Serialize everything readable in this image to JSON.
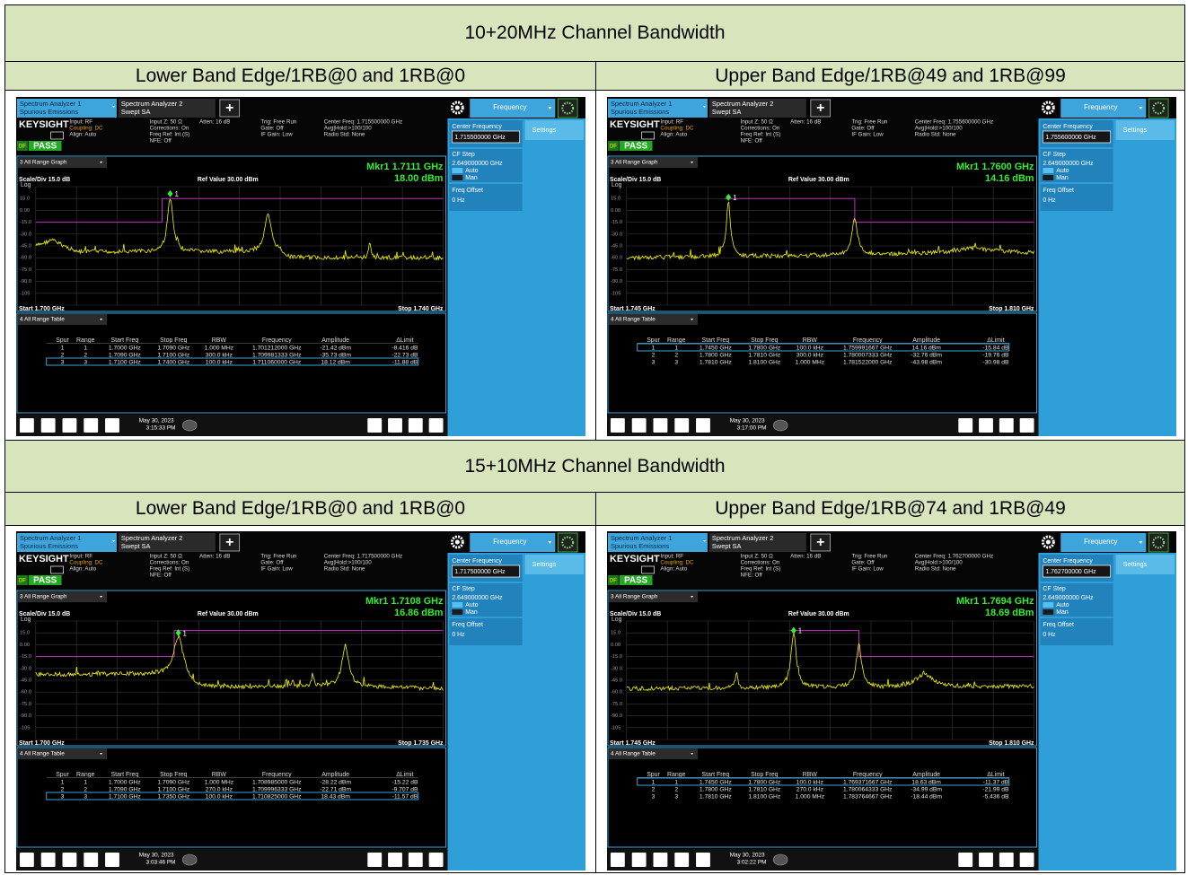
{
  "blocks": [
    {
      "title": "10+20MHz Channel Bandwidth",
      "panels": [
        {
          "heading": "Lower Band Edge/1RB@0 and 1RB@0",
          "screen": {
            "tabs": [
              {
                "line1": "Spectrum Analyzer 1",
                "line2": "Spurious Emissions"
              },
              {
                "line1": "Spectrum Analyzer 2",
                "line2": "Swept SA"
              }
            ],
            "new_tab": "+",
            "menu": "Frequency",
            "brand": "KEYSIGHT",
            "status": [
              [
                "Input: RF",
                "Coupling: DC",
                "Align: Auto"
              ],
              [
                "Input Z: 50 Ω",
                "Corrections: On",
                "Freq Ref: Int (S)",
                "NFE: Off"
              ],
              [
                "Atten: 16 dB"
              ],
              [
                "Trig: Free Run",
                "Gate: Off",
                "IF Gain: Low"
              ],
              [
                "Center Freq: 1.715500000 GHz",
                "Avg|Hold:>100/100",
                "Radio Std: None"
              ]
            ],
            "flag": "DF",
            "result": "PASS",
            "graph_title": "3 All Range Graph",
            "marker_freq": "Mkr1 1.7111 GHz",
            "marker_amp": "18.00 dBm",
            "marker_tag": "1",
            "scale": "Scale/Div 15.0 dB",
            "ref": "Ref Value 30.00 dBm",
            "log": "Log",
            "y_labels": [
              "15.0",
              "0.00",
              "-15.0",
              "-30.0",
              "-45.0",
              "-60.0",
              "-75.0",
              "-90.0",
              "-105"
            ],
            "start": "Start 1.700 GHz",
            "stop": "Stop 1.740 GHz",
            "table_title": "4 All Range Table",
            "columns": [
              "Spur",
              "Range",
              "Start Freq",
              "Stop Freq",
              "RBW",
              "Frequency",
              "Amplitude",
              "ΔLimit"
            ],
            "rows": [
              [
                "1",
                "1",
                "1.7000 GHz",
                "1.7090 GHz",
                "1.000 MHz",
                "1.701212000 GHz",
                "-21.42 dBm",
                "-8.416 dB"
              ],
              [
                "2",
                "2",
                "1.7090 GHz",
                "1.7100 GHz",
                "300.0 kHz",
                "1.709981333 GHz",
                "-35.73 dBm",
                "-22.73 dB"
              ],
              [
                "3",
                "3",
                "1.7100 GHz",
                "1.7400 GHz",
                "100.0 kHz",
                "1.711060000 GHz",
                "18.12 dBm",
                "-11.88 dB"
              ]
            ],
            "selected_row": 2,
            "date": "May 30, 2023",
            "time": "3:15:33 PM",
            "softkeys": {
              "center_label": "Center Frequency",
              "center_value": "1.715500000 GHz",
              "step_label": "CF Step",
              "step_value": "2.649000000 GHz",
              "auto": "Auto",
              "man": "Man",
              "offset_label": "Freq Offset",
              "offset_value": "0 Hz",
              "tab": "Settings"
            }
          }
        },
        {
          "heading": "Upper Band Edge/1RB@49 and 1RB@99",
          "screen": {
            "tabs": [
              {
                "line1": "Spectrum Analyzer 1",
                "line2": "Spurious Emissions"
              },
              {
                "line1": "Spectrum Analyzer 2",
                "line2": "Swept SA"
              }
            ],
            "new_tab": "+",
            "menu": "Frequency",
            "brand": "KEYSIGHT",
            "status": [
              [
                "Input: RF",
                "Coupling: DC",
                "Align: Auto"
              ],
              [
                "Input Z: 50 Ω",
                "Corrections: On",
                "Freq Ref: Int (S)",
                "NFE: Off"
              ],
              [
                "Atten: 16 dB"
              ],
              [
                "Trig: Free Run",
                "Gate: Off",
                "IF Gain: Low"
              ],
              [
                "Center Freq: 1.755600000 GHz",
                "Avg|Hold:>100/100",
                "Radio Std: None"
              ]
            ],
            "flag": "DF",
            "result": "PASS",
            "graph_title": "3 All Range Graph",
            "marker_freq": "Mkr1 1.7600 GHz",
            "marker_amp": "14.16 dBm",
            "marker_tag": "1",
            "scale": "Scale/Div 15.0 dB",
            "ref": "Ref Value 30.00 dBm",
            "log": "Log",
            "y_labels": [
              "15.0",
              "0.00",
              "-15.0",
              "-30.0",
              "-45.0",
              "-60.0",
              "-75.0",
              "-90.0",
              "-105"
            ],
            "start": "Start 1.745 GHz",
            "stop": "Stop 1.810 GHz",
            "table_title": "4 All Range Table",
            "columns": [
              "Spur",
              "Range",
              "Start Freq",
              "Stop Freq",
              "RBW",
              "Frequency",
              "Amplitude",
              "ΔLimit"
            ],
            "rows": [
              [
                "1",
                "1",
                "1.7450 GHz",
                "1.7800 GHz",
                "100.0 kHz",
                "1.759991667 GHz",
                "14.16 dBm",
                "-15.84 dB"
              ],
              [
                "2",
                "2",
                "1.7800 GHz",
                "1.7810 GHz",
                "300.0 kHz",
                "1.780007333 GHz",
                "-32.76 dBm",
                "-19.76 dB"
              ],
              [
                "3",
                "3",
                "1.7810 GHz",
                "1.8100 GHz",
                "1.000 MHz",
                "1.781522000 GHz",
                "-43.98 dBm",
                "-30.98 dB"
              ]
            ],
            "selected_row": 0,
            "date": "May 30, 2023",
            "time": "3:17:00 PM",
            "softkeys": {
              "center_label": "Center Frequency",
              "center_value": "1.755600000 GHz",
              "step_label": "CF Step",
              "step_value": "2.649000000 GHz",
              "auto": "Auto",
              "man": "Man",
              "offset_label": "Freq Offset",
              "offset_value": "0 Hz",
              "tab": "Settings"
            }
          }
        }
      ]
    },
    {
      "title": "15+10MHz Channel Bandwidth",
      "panels": [
        {
          "heading": "Lower Band Edge/1RB@0 and 1RB@0",
          "screen": {
            "tabs": [
              {
                "line1": "Spectrum Analyzer 1",
                "line2": "Spurious Emissions"
              },
              {
                "line1": "Spectrum Analyzer 2",
                "line2": "Swept SA"
              }
            ],
            "new_tab": "+",
            "menu": "Frequency",
            "brand": "KEYSIGHT",
            "status": [
              [
                "Input: RF",
                "Coupling: DC",
                "Align: Auto"
              ],
              [
                "Input Z: 50 Ω",
                "Corrections: On",
                "Freq Ref: Int (S)",
                "NFE: Off"
              ],
              [
                "Atten: 16 dB"
              ],
              [
                "Trig: Free Run",
                "Gate: Off",
                "IF Gain: Low"
              ],
              [
                "Center Freq: 1.717500000 GHz",
                "Avg|Hold:>100/100",
                "Radio Std: None"
              ]
            ],
            "flag": "DF",
            "result": "PASS",
            "graph_title": "3 All Range Graph",
            "marker_freq": "Mkr1 1.7108 GHz",
            "marker_amp": "16.86 dBm",
            "marker_tag": "1",
            "scale": "Scale/Div 15.0 dB",
            "ref": "Ref Value 30.00 dBm",
            "log": "Log",
            "y_labels": [
              "15.0",
              "0.00",
              "-15.0",
              "-30.0",
              "-45.0",
              "-60.0",
              "-75.0",
              "-90.0",
              "-105"
            ],
            "start": "Start 1.700 GHz",
            "stop": "Stop 1.735 GHz",
            "table_title": "4 All Range Table",
            "columns": [
              "Spur",
              "Range",
              "Start Freq",
              "Stop Freq",
              "RBW",
              "Frequency",
              "Amplitude",
              "ΔLimit"
            ],
            "rows": [
              [
                "1",
                "1",
                "1.7000 GHz",
                "1.7090 GHz",
                "1.000 MHz",
                "1.708985000 GHz",
                "-28.22 dBm",
                "-15.22 dB"
              ],
              [
                "2",
                "2",
                "1.7090 GHz",
                "1.7100 GHz",
                "270.0 kHz",
                "1.709996333 GHz",
                "-22.71 dBm",
                "-9.707 dB"
              ],
              [
                "3",
                "3",
                "1.7100 GHz",
                "1.7350 GHz",
                "100.0 kHz",
                "1.710825000 GHz",
                "18.43 dBm",
                "-11.57 dB"
              ]
            ],
            "selected_row": 2,
            "date": "May 30, 2023",
            "time": "3:03:46 PM",
            "softkeys": {
              "center_label": "Center Frequency",
              "center_value": "1.717500000 GHz",
              "step_label": "CF Step",
              "step_value": "2.649000000 GHz",
              "auto": "Auto",
              "man": "Man",
              "offset_label": "Freq Offset",
              "offset_value": "0 Hz",
              "tab": "Settings"
            }
          }
        },
        {
          "heading": "Upper Band Edge/1RB@74 and 1RB@49",
          "screen": {
            "tabs": [
              {
                "line1": "Spectrum Analyzer 1",
                "line2": "Spurious Emissions"
              },
              {
                "line1": "Spectrum Analyzer 2",
                "line2": "Swept SA"
              }
            ],
            "new_tab": "+",
            "menu": "Frequency",
            "brand": "KEYSIGHT",
            "status": [
              [
                "Input: RF",
                "Coupling: DC",
                "Align: Auto"
              ],
              [
                "Input Z: 50 Ω",
                "Corrections: On",
                "Freq Ref: Int (S)",
                "NFE: Off"
              ],
              [
                "Atten: 16 dB"
              ],
              [
                "Trig: Free Run",
                "Gate: Off",
                "IF Gain: Low"
              ],
              [
                "Center Freq: 1.762700000 GHz",
                "Avg|Hold:>100/100",
                "Radio Std: None"
              ]
            ],
            "flag": "DF",
            "result": "PASS",
            "graph_title": "3 All Range Graph",
            "marker_freq": "Mkr1 1.7694 GHz",
            "marker_amp": "18.69 dBm",
            "marker_tag": "1",
            "scale": "Scale/Div 15.0 dB",
            "ref": "Ref Value 30.00 dBm",
            "log": "Log",
            "y_labels": [
              "15.0",
              "0.00",
              "-15.0",
              "-30.0",
              "-45.0",
              "-60.0",
              "-75.0",
              "-90.0",
              "-105"
            ],
            "start": "Start 1.745 GHz",
            "stop": "Stop 1.810 GHz",
            "table_title": "4 All Range Table",
            "columns": [
              "Spur",
              "Range",
              "Start Freq",
              "Stop Freq",
              "RBW",
              "Frequency",
              "Amplitude",
              "ΔLimit"
            ],
            "rows": [
              [
                "1",
                "1",
                "1.7450 GHz",
                "1.7800 GHz",
                "100.0 kHz",
                "1.769371667 GHz",
                "18.63 dBm",
                "-11.37 dB"
              ],
              [
                "2",
                "2",
                "1.7800 GHz",
                "1.7810 GHz",
                "270.0 kHz",
                "1.780064333 GHz",
                "-34.99 dBm",
                "-21.99 dB"
              ],
              [
                "3",
                "3",
                "1.7810 GHz",
                "1.8100 GHz",
                "1.000 MHz",
                "1.783764667 GHz",
                "-18.44 dBm",
                "-5.436 dB"
              ]
            ],
            "selected_row": 0,
            "date": "May 30, 2023",
            "time": "3:02:22 PM",
            "softkeys": {
              "center_label": "Center Frequency",
              "center_value": "1.762700000 GHz",
              "step_label": "CF Step",
              "step_value": "2.649000000 GHz",
              "auto": "Auto",
              "man": "Man",
              "offset_label": "Freq Offset",
              "offset_value": "0 Hz",
              "tab": "Settings"
            }
          }
        }
      ]
    }
  ]
}
